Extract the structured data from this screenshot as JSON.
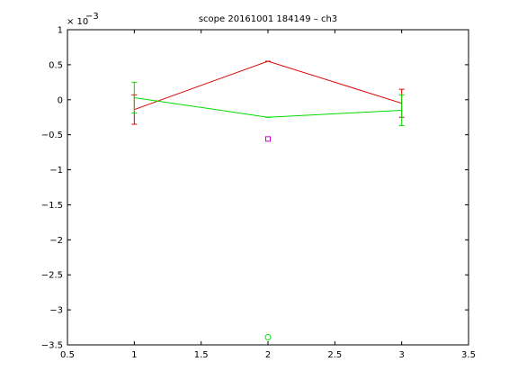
{
  "chart_data": {
    "type": "line",
    "title": "scope 20161001 184149 – ch3",
    "exponent_label": "× 10",
    "exponent_power": "−3",
    "xlim": [
      0.5,
      3.5
    ],
    "ylim": [
      -3.5,
      1
    ],
    "y_multiplier": "1e-3",
    "x_ticks": [
      "0.5",
      "1",
      "1.5",
      "2",
      "2.5",
      "3",
      "3.5"
    ],
    "y_ticks": [
      "1",
      "0.5",
      "0",
      "−0.5",
      "−1",
      "−1.5",
      "−2",
      "−2.5",
      "−3",
      "−3.5"
    ],
    "grid": false,
    "series": [
      {
        "color": "#dd0000",
        "type": "line-errorbar",
        "x": [
          1,
          2,
          3
        ],
        "y": [
          -0.14,
          0.55,
          -0.05
        ],
        "err": [
          0.21,
          0.0,
          0.2
        ]
      },
      {
        "color": "#00dd00",
        "type": "line-errorbar",
        "x": [
          1,
          2,
          3
        ],
        "y": [
          0.03,
          -0.25,
          -0.15
        ],
        "err": [
          0.22,
          0.0,
          0.22
        ]
      },
      {
        "color": "#cc00cc",
        "type": "scatter",
        "marker": "square",
        "x": [
          2
        ],
        "y": [
          -0.56
        ]
      },
      {
        "color": "#00dd00",
        "type": "scatter",
        "marker": "circle",
        "x": [
          2
        ],
        "y": [
          -3.39
        ]
      }
    ]
  }
}
